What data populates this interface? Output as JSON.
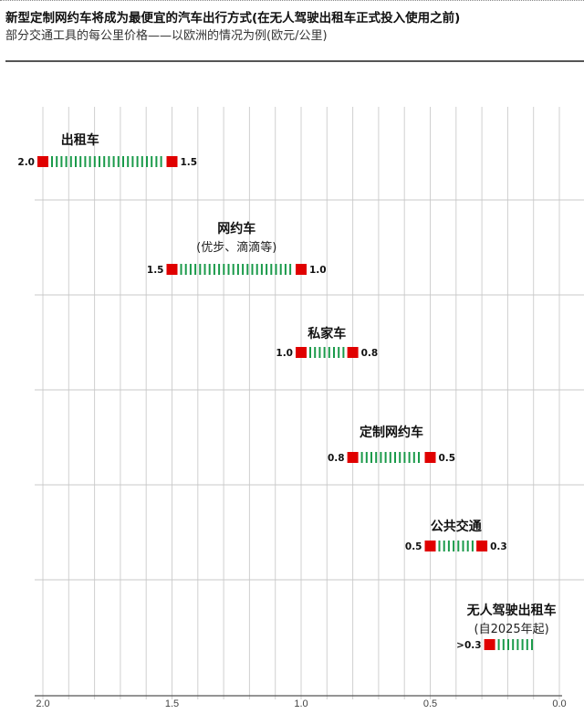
{
  "title": "新型定制网约车将成为最便宜的汽车出行方式(在无人驾驶出租车正式投入使用之前)",
  "subtitle": "部分交通工具的每公里价格——以欧洲的情况为例(欧元/公里)",
  "chart_data": {
    "type": "range-bar",
    "xlim": [
      2.0,
      0.0
    ],
    "x_reversed": true,
    "xticks": [
      "2.0",
      "1.5",
      "1.0",
      "0.5",
      "0.0"
    ],
    "xtick_values": [
      2.0,
      1.5,
      1.0,
      0.5,
      0.0
    ],
    "grid": true,
    "colors": {
      "marker": "#e00000",
      "range": "#1a9a4a",
      "grid": "#d0d0d0"
    },
    "rows": [
      {
        "name": "出租车",
        "note": "",
        "high": 2.0,
        "low": 1.5,
        "high_label": "2.0",
        "low_label": "1.5"
      },
      {
        "name": "网约车",
        "note": "(优步、滴滴等)",
        "high": 1.5,
        "low": 1.0,
        "high_label": "1.5",
        "low_label": "1.0"
      },
      {
        "name": "私家车",
        "note": "",
        "high": 1.0,
        "low": 0.8,
        "high_label": "1.0",
        "low_label": "0.8"
      },
      {
        "name": "定制网约车",
        "note": "",
        "high": 0.8,
        "low": 0.5,
        "high_label": "0.8",
        "low_label": "0.5"
      },
      {
        "name": "公共交通",
        "note": "",
        "high": 0.5,
        "low": 0.3,
        "high_label": "0.5",
        "low_label": "0.3"
      },
      {
        "name": "无人驾驶出租车",
        "note": "(自2025年起)",
        "high": 0.27,
        "low": 0.1,
        "high_label": ">0.3",
        "low_label": "",
        "open_ended": true
      }
    ]
  }
}
